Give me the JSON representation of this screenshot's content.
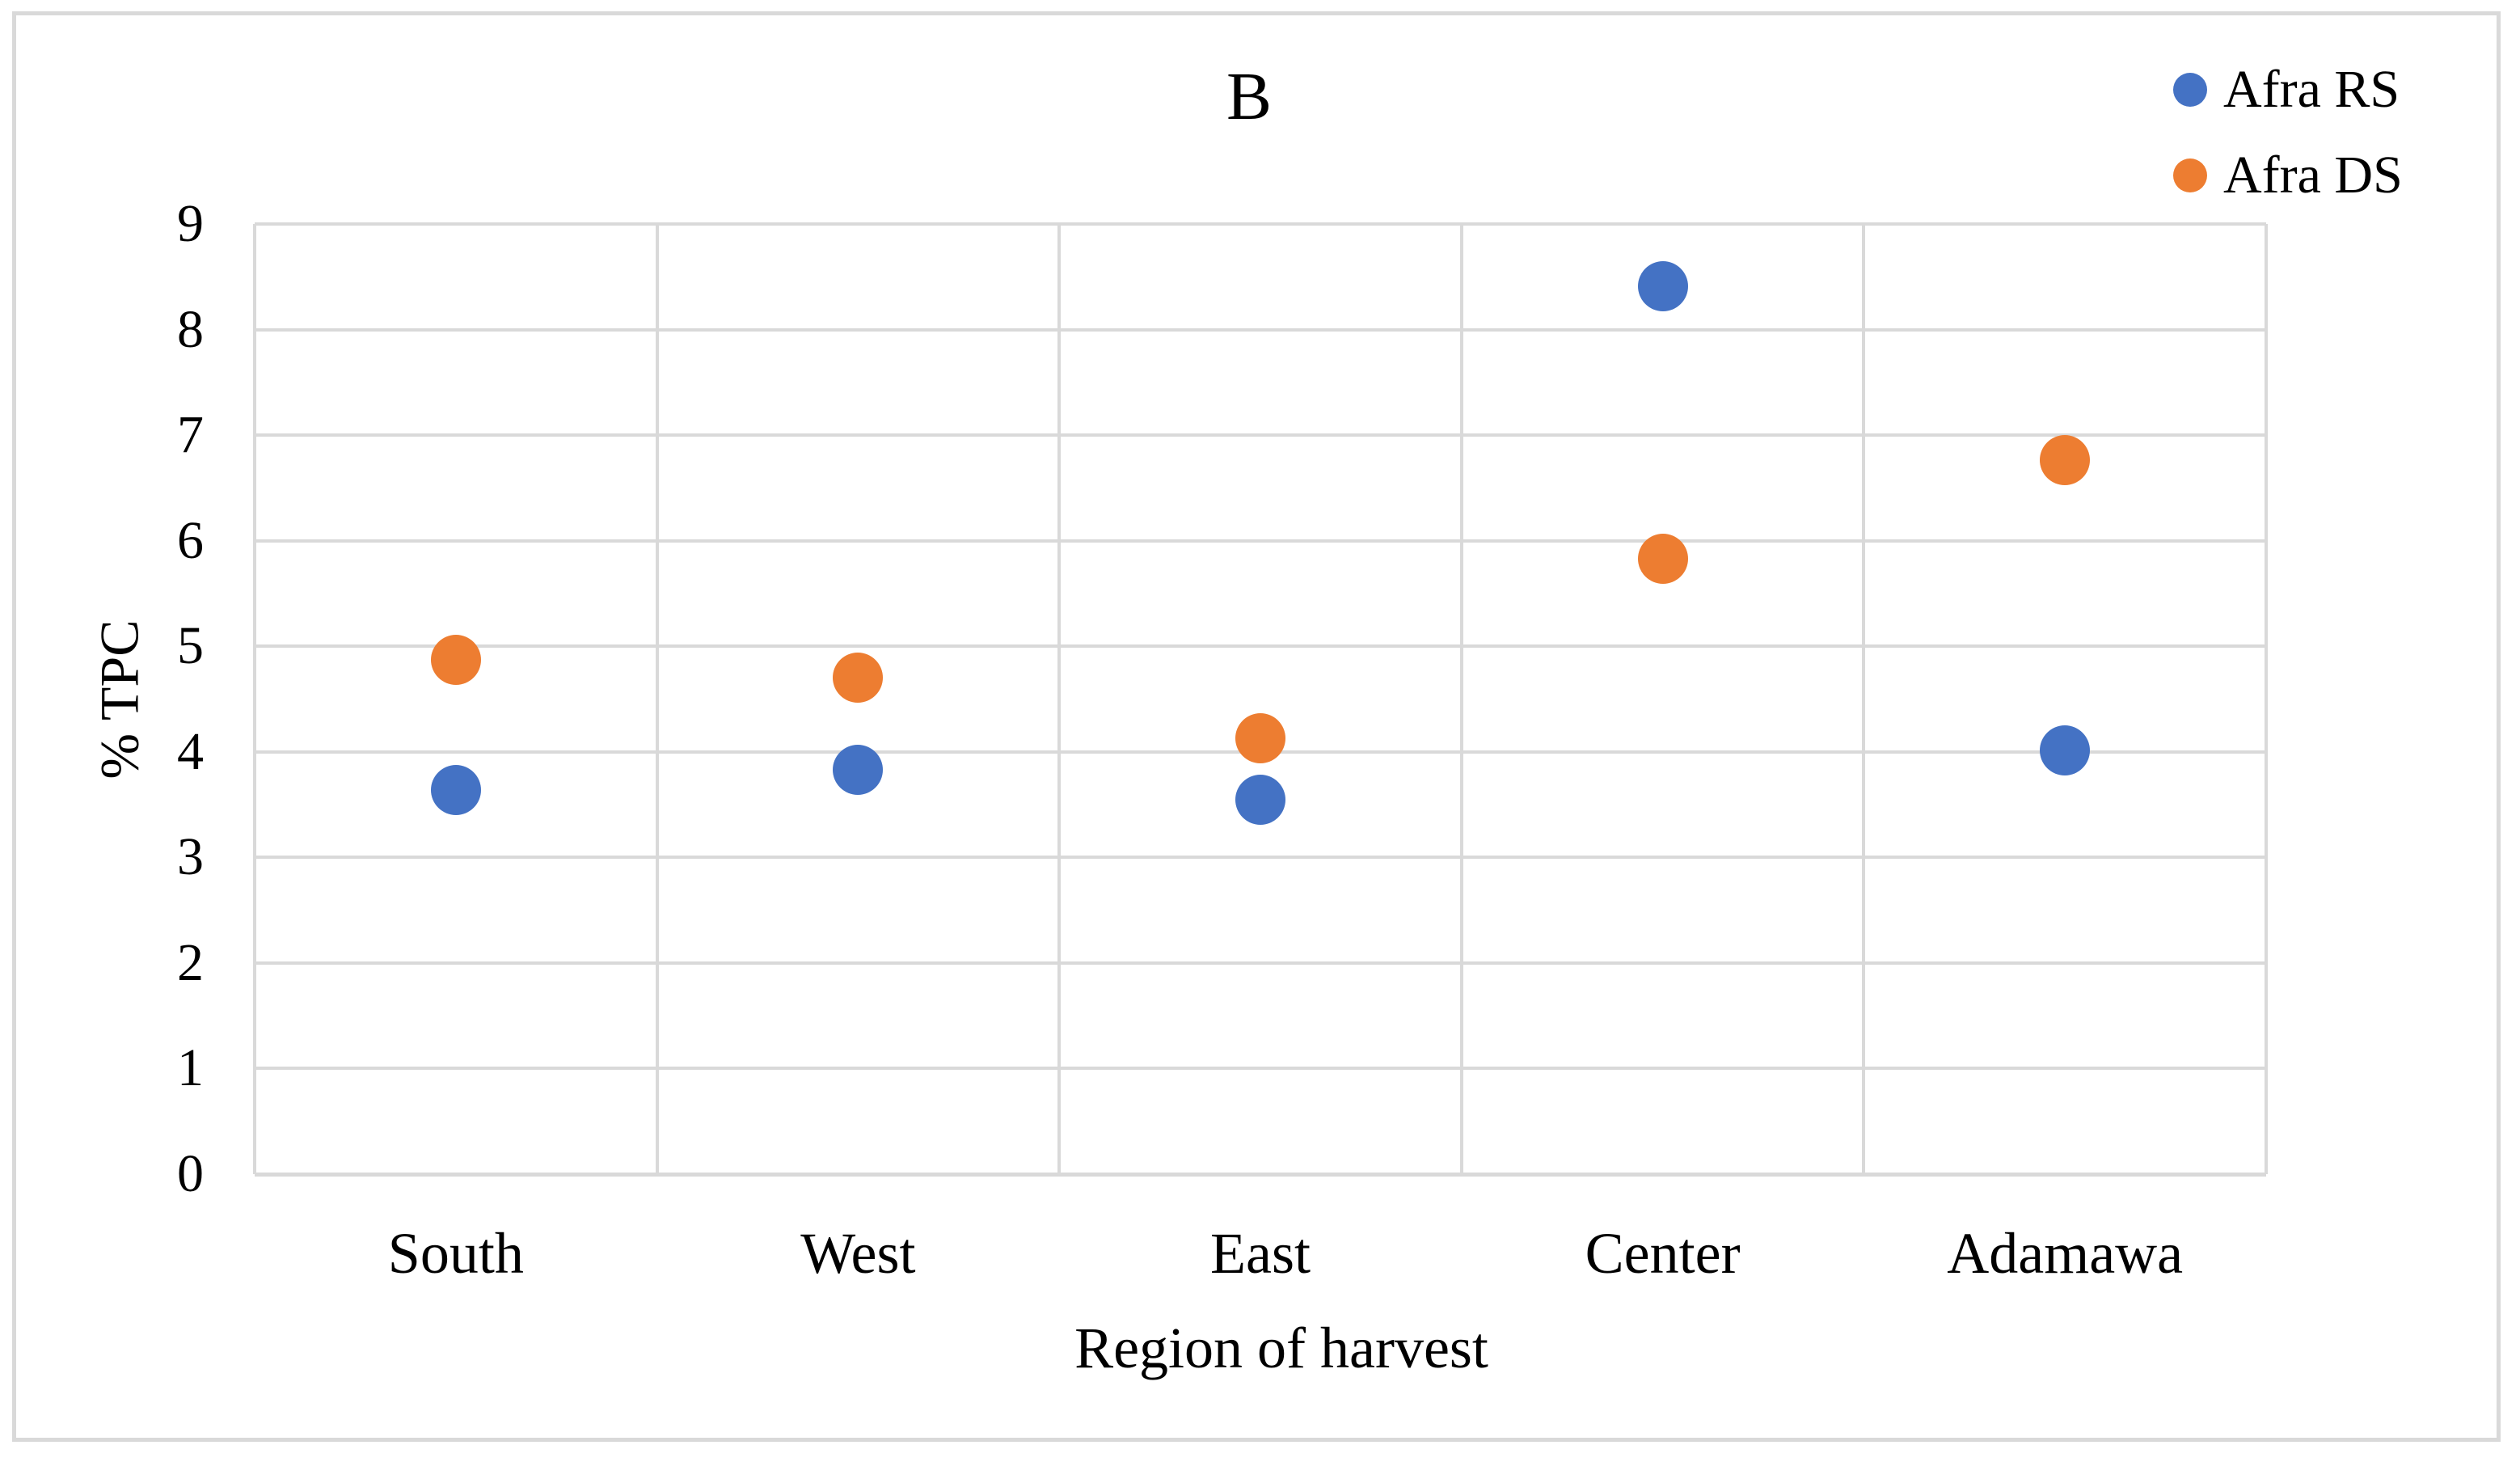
{
  "figure": {
    "background": "#FFFFFF",
    "border_color": "#D9D9D9"
  },
  "chart_data": {
    "type": "scatter",
    "title": "B",
    "xlabel": "Region of harvest",
    "ylabel": "% TPC",
    "categories": [
      "South",
      "West",
      "East",
      "Center",
      "Adamawa"
    ],
    "series": [
      {
        "name": "Afra RS",
        "color": "#4472C4",
        "values": [
          3.64,
          3.83,
          3.55,
          8.41,
          4.01
        ]
      },
      {
        "name": "Afra DS",
        "color": "#ED7D31",
        "values": [
          4.87,
          4.7,
          4.13,
          5.83,
          6.76
        ]
      }
    ],
    "ylim": [
      0,
      9
    ],
    "ytick_step": 1,
    "ytick_labels": [
      "0",
      "1",
      "2",
      "3",
      "4",
      "5",
      "6",
      "7",
      "8",
      "9"
    ],
    "grid": true,
    "gridline_color": "#D9D9D9",
    "legend_position": "top-right"
  }
}
